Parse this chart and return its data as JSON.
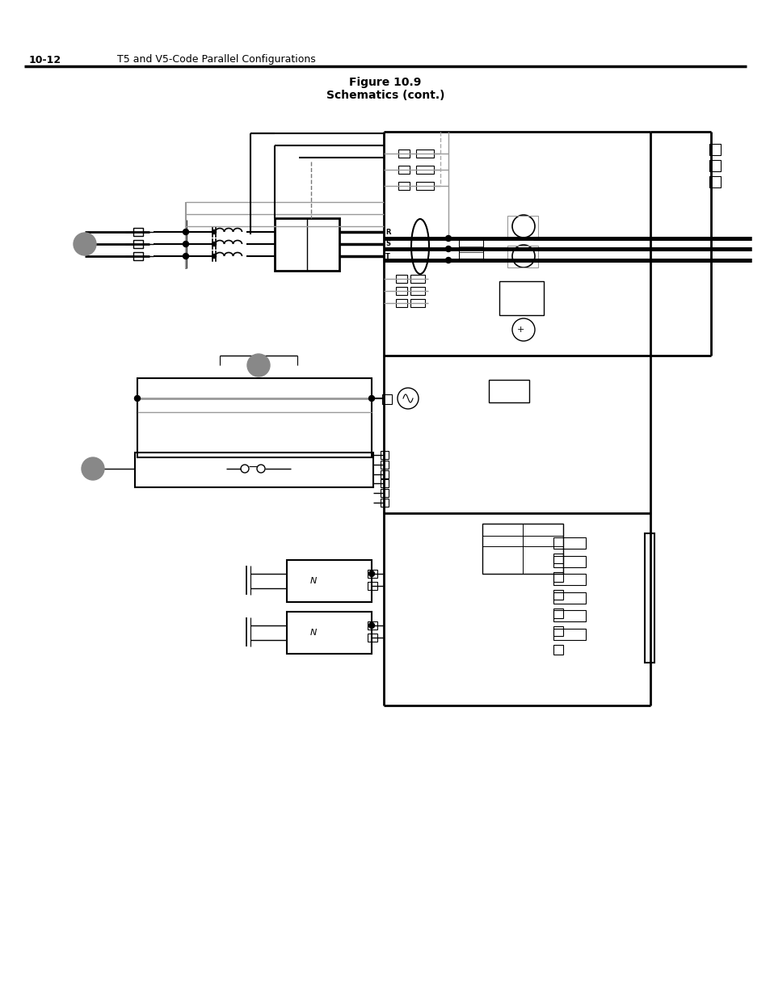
{
  "title1": "Figure 10.9",
  "title2": "Schematics (cont.)",
  "header_left": "10-12",
  "header_right": "T5 and V5-Code Parallel Configurations",
  "bg_color": "#ffffff",
  "lc": "#000000",
  "gc": "#888888",
  "lgc": "#999999"
}
